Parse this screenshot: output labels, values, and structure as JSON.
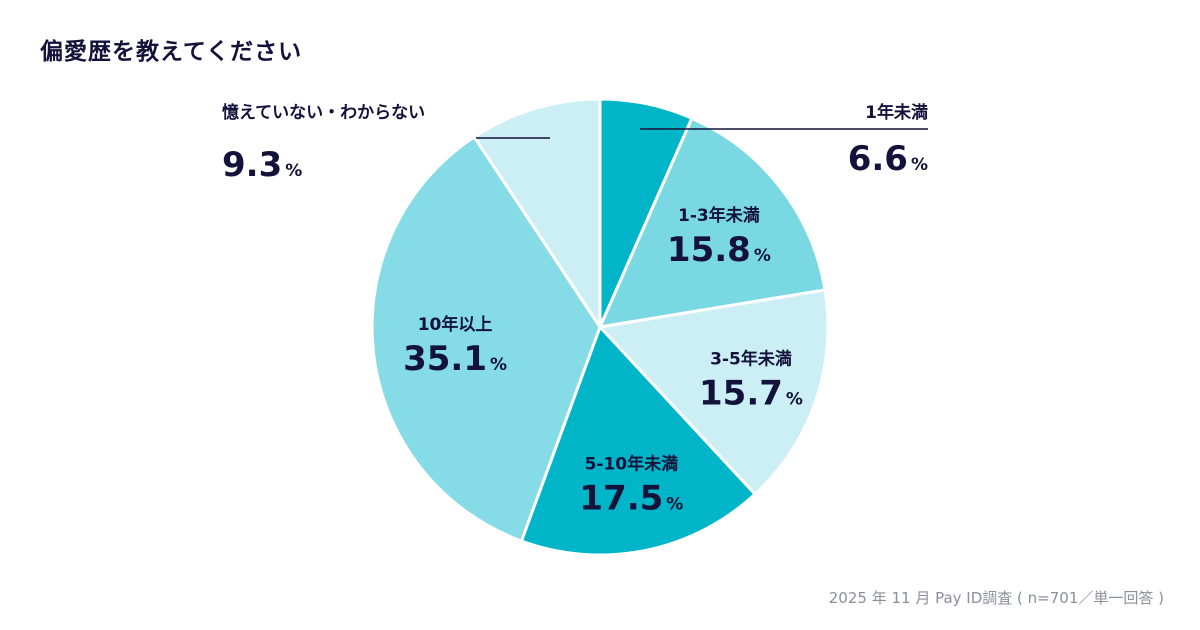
{
  "title": "偏愛歴を教えてください",
  "footnote": "2025 年 11 月 Pay ID調査 ( n=701／単一回答 )",
  "colors": {
    "title": "#12123a",
    "label": "#12123a",
    "leader_line": "#12123a",
    "slice_border": "#ffffff",
    "footnote": "#8a8f99"
  },
  "chart_data": {
    "type": "pie",
    "unit": "%",
    "start": "12 o'clock",
    "direction": "clockwise",
    "slices": [
      {
        "label": "1年未満",
        "value": 6.6,
        "value_text": "6.6",
        "color": "#00b5c8",
        "label_position": "outside-right"
      },
      {
        "label": "1-3年未満",
        "value": 15.8,
        "value_text": "15.8",
        "color": "#7ad8e3",
        "label_position": "inside"
      },
      {
        "label": "3-5年未満",
        "value": 15.7,
        "value_text": "15.7",
        "color": "#cbeff5",
        "label_position": "inside"
      },
      {
        "label": "5-10年未満",
        "value": 17.5,
        "value_text": "17.5",
        "color": "#00b5c8",
        "label_position": "inside"
      },
      {
        "label": "10年以上",
        "value": 35.1,
        "value_text": "35.1",
        "color": "#86dce6",
        "label_position": "inside"
      },
      {
        "label": "憶えていない・わからない",
        "value": 9.3,
        "value_text": "9.3",
        "color": "#cbeff5",
        "label_position": "outside-left"
      }
    ]
  }
}
